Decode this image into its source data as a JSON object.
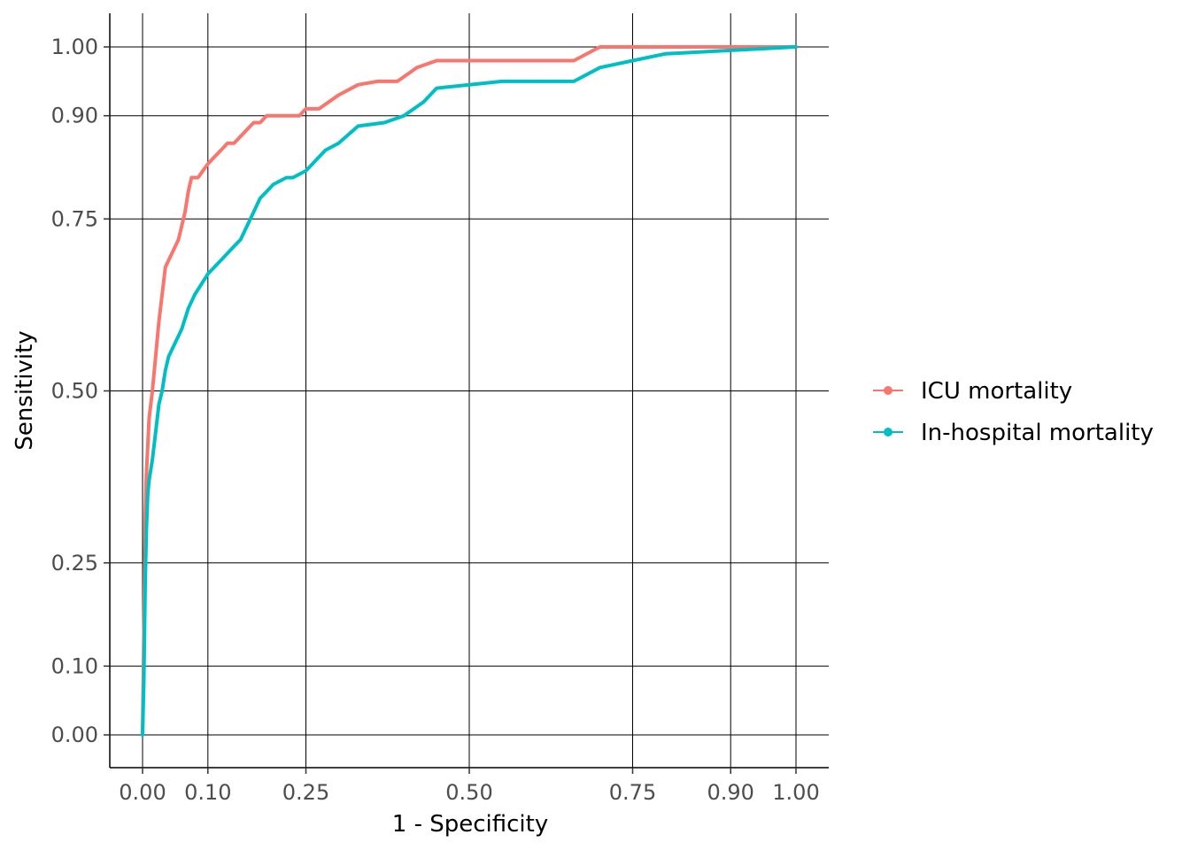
{
  "chart_data": {
    "type": "line",
    "title": "",
    "xlabel": "1 - Specificity",
    "ylabel": "Sensitivity",
    "xlim": [
      0,
      1
    ],
    "ylim": [
      0,
      1
    ],
    "x_ticks": [
      "0.00",
      "0.10",
      "0.25",
      "0.50",
      "0.75",
      "0.90",
      "1.00"
    ],
    "x_tick_values": [
      0,
      0.1,
      0.25,
      0.5,
      0.75,
      0.9,
      1
    ],
    "y_ticks": [
      "0.00",
      "0.10",
      "0.25",
      "0.50",
      "0.75",
      "0.90",
      "1.00"
    ],
    "y_tick_values": [
      0,
      0.1,
      0.25,
      0.5,
      0.75,
      0.9,
      1
    ],
    "grid": true,
    "legend_position": "right",
    "series": [
      {
        "name": "ICU mortality",
        "color": "#F8766D",
        "x": [
          0,
          0.002,
          0.004,
          0.006,
          0.008,
          0.01,
          0.015,
          0.02,
          0.025,
          0.03,
          0.035,
          0.04,
          0.045,
          0.05,
          0.055,
          0.06,
          0.065,
          0.07,
          0.075,
          0.08,
          0.085,
          0.1,
          0.11,
          0.12,
          0.13,
          0.14,
          0.15,
          0.16,
          0.17,
          0.18,
          0.19,
          0.2,
          0.22,
          0.24,
          0.25,
          0.27,
          0.3,
          0.33,
          0.36,
          0.39,
          0.42,
          0.45,
          0.5,
          0.6,
          0.66,
          0.7,
          0.8,
          0.9,
          1.0
        ],
        "y": [
          0,
          0.15,
          0.32,
          0.38,
          0.42,
          0.46,
          0.5,
          0.55,
          0.6,
          0.64,
          0.68,
          0.69,
          0.7,
          0.71,
          0.72,
          0.74,
          0.76,
          0.79,
          0.81,
          0.81,
          0.81,
          0.83,
          0.84,
          0.85,
          0.86,
          0.86,
          0.87,
          0.88,
          0.89,
          0.89,
          0.9,
          0.9,
          0.9,
          0.9,
          0.91,
          0.91,
          0.93,
          0.945,
          0.95,
          0.95,
          0.97,
          0.98,
          0.98,
          0.98,
          0.98,
          1.0,
          1.0,
          1.0,
          1.0
        ]
      },
      {
        "name": "In-hospital mortality",
        "color": "#00BFC4",
        "x": [
          0,
          0.002,
          0.004,
          0.006,
          0.008,
          0.01,
          0.015,
          0.02,
          0.025,
          0.03,
          0.035,
          0.04,
          0.045,
          0.05,
          0.06,
          0.07,
          0.08,
          0.1,
          0.11,
          0.12,
          0.13,
          0.14,
          0.15,
          0.16,
          0.17,
          0.18,
          0.19,
          0.2,
          0.22,
          0.23,
          0.25,
          0.28,
          0.3,
          0.33,
          0.37,
          0.4,
          0.43,
          0.45,
          0.5,
          0.55,
          0.6,
          0.66,
          0.7,
          0.75,
          0.8,
          0.9,
          1.0
        ],
        "y": [
          0,
          0.08,
          0.22,
          0.3,
          0.35,
          0.37,
          0.4,
          0.44,
          0.48,
          0.5,
          0.53,
          0.55,
          0.56,
          0.57,
          0.59,
          0.62,
          0.64,
          0.67,
          0.68,
          0.69,
          0.7,
          0.71,
          0.72,
          0.74,
          0.76,
          0.78,
          0.79,
          0.8,
          0.81,
          0.81,
          0.82,
          0.85,
          0.86,
          0.885,
          0.89,
          0.9,
          0.92,
          0.94,
          0.945,
          0.95,
          0.95,
          0.95,
          0.97,
          0.98,
          0.99,
          0.995,
          1.0
        ]
      }
    ]
  }
}
